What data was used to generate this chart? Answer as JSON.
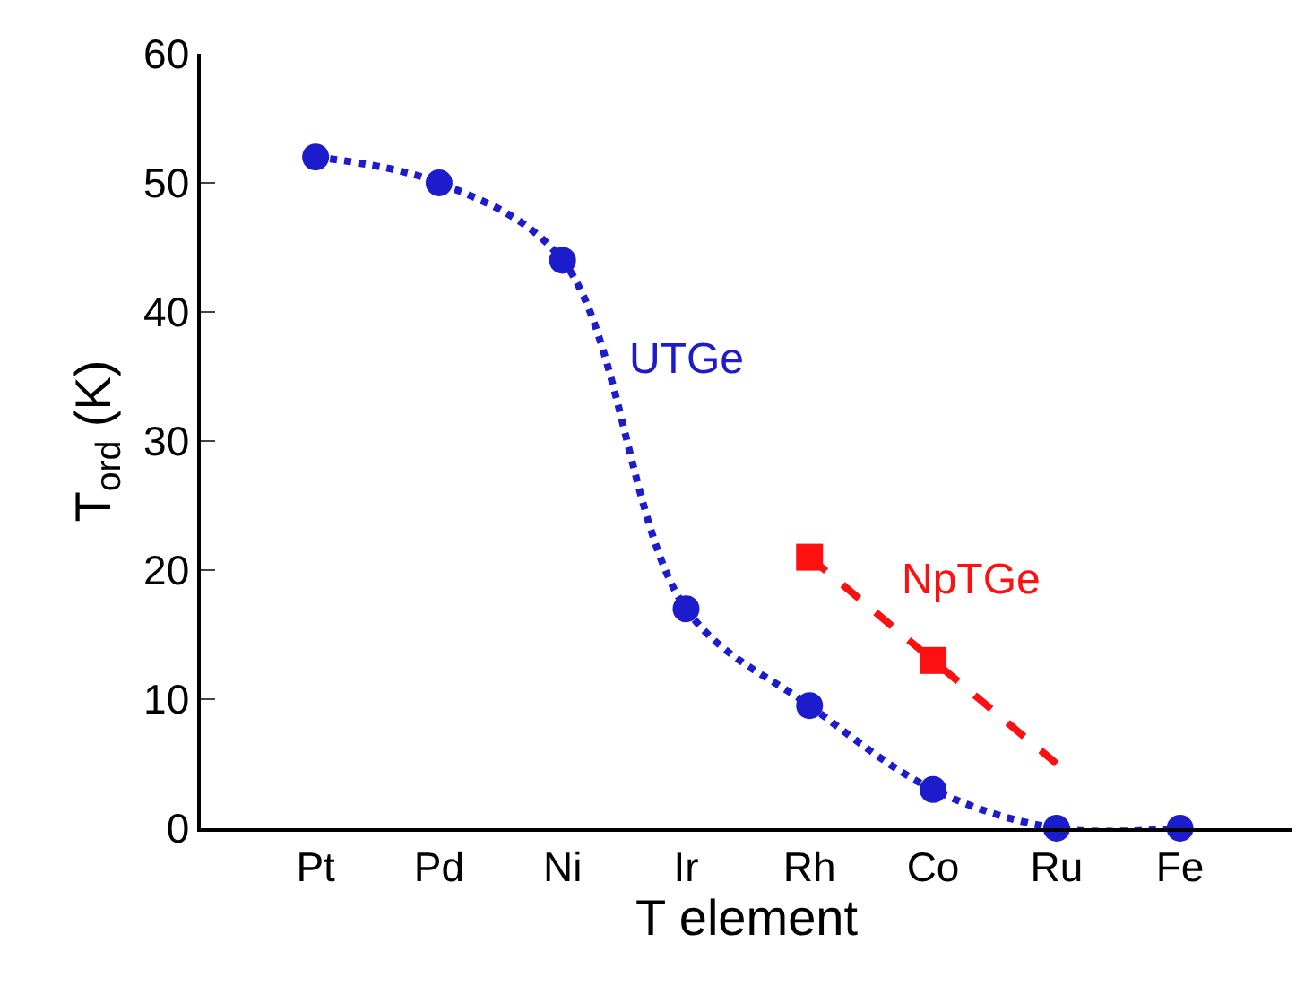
{
  "chart_data": {
    "type": "line",
    "xlabel": "T element",
    "ylabel": "T$_{ord}$ (K)",
    "categories": [
      "Pt",
      "Pd",
      "Ni",
      "Ir",
      "Rh",
      "Co",
      "Ru",
      "Fe"
    ],
    "ylim": [
      0,
      60
    ],
    "yticks": [
      0,
      10,
      20,
      30,
      40,
      50,
      60
    ],
    "grid": false,
    "legend": false,
    "series": [
      {
        "name": "UTGe",
        "color": "#1c1ccc",
        "values": [
          52,
          50,
          44,
          17,
          9.5,
          3,
          0,
          0
        ],
        "marker": "circle",
        "line_style": "dotted"
      },
      {
        "name": "NpTGe",
        "type": "scatter",
        "color": "#ff1010",
        "values": [
          null,
          null,
          null,
          null,
          21,
          13,
          null,
          null
        ],
        "marker": "square"
      },
      {
        "type": "line",
        "color": "#ff1010",
        "values": [
          null,
          null,
          null,
          null,
          21,
          13,
          5,
          null
        ],
        "marker": "none",
        "line_style": "dashed"
      }
    ]
  }
}
